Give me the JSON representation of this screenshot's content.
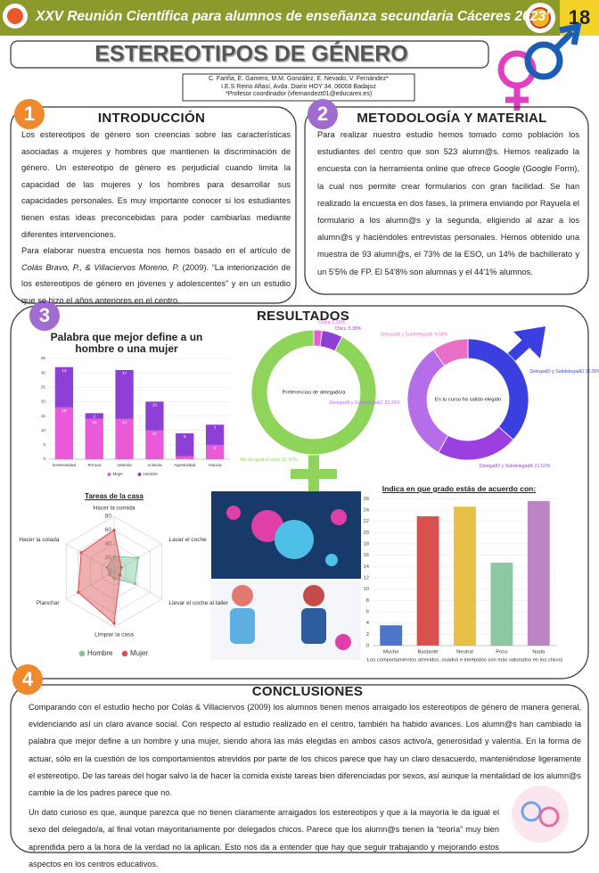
{
  "header": {
    "title": "XXV Reunión Científica para alumnos de enseñanza secundaria  Cáceres 2023”",
    "number": "18"
  },
  "title": "ESTEREOTIPOS DE GÉNERO",
  "authors": [
    "C. Fariña, E. Gamero, M.M. González, E. Nevado, V. Fernández*",
    "I.E.S Reino Aftasí, Avda. Diario HOY 34. 06008 Badajoz",
    "*Profesor coordinador (vfernandezt01@educarex.es)"
  ],
  "introduction": {
    "number": "1",
    "title": "INTRODUCCIÓN",
    "paragraphs": [
      "Los estereotipos de género son creencias sobre las características asociadas a mujeres y hombres que mantienen la discriminación de género. Un estereotipo de género es perjudicial cuando limita la capacidad de las mujeres y los hombres para desarrollar sus capacidades personales. Es muy importante conocer si los estudiantes tienen estas ideas preconcebidas para poder cambiarlas mediante diferentes intervenciones."
    ],
    "reference": {
      "lead": "Para elaborar nuestra encuesta nos hemos basado en el artículo de ",
      "citation": "Colás Bravo, P., & Villaciervos Moreno, P.",
      "rest": " (2009). “La interiorización de los estereotipos de género en jóvenes y adolescentes” y en un estudio que se hizo el años anteriores en el centro."
    }
  },
  "methodology": {
    "number": "2",
    "title": "METODOLOGÍA Y MATERIAL",
    "text": "Para realizar nuestro estudio hemos tomado como población los estudiantes del centro que son 523 alumn@s. Hemos realizado la encuesta con la herramienta online que ofrece Google (Google Form), la cual nos permite crear formularios con gran facilidad. Se han realizado la encuesta en dos fases, la primera enviando por Rayuela el formulario a los alumn@s y la segunda, eligiendo al azar a los alumn@s y haciéndoles entrevistas personales. Hemos obtenido una muestra de 93 alumn@s, el 73% de la ESO, un 14% de bachillerato y un 5'5% de FP. El 54'8% son alumnas y el 44'1% alumnos."
  },
  "results": {
    "number": "3",
    "title": "RESULTADOS"
  },
  "conclusions": {
    "number": "4",
    "title": "CONCLUSIONES",
    "paragraphs": [
      "Comparando con el estudio hecho por Colás & Villaciervos (2009) los alumnos tienen menos arraigado los estereotipos de género de manera general, evidenciando así un claro avance social. Con respecto al estudio realizado en el centro, también ha habido avances. Los alumn@s han cambiado la palabra que mejor define a un hombre y una mujer, siendo ahora las más elegidas en ambos casos activo/a, generosidad y valentía. En la forma de actuar, sólo en la cuestión de los comportamientos atrevidos por parte de los chicos parece que hay un claro desacuerdo, manteniéndose ligeramente el estereotipo. De las tareas del hogar salvo la de hacer la comida existe tareas bien diferenciadas por sexos, así aunque la mentalidad de los alumn@s cambie la de los padres parece que no.",
      "Un dato curioso es que, aunque parezca que no tienen claramente arraigados los estereotipos y que a la mayoría le da igual el sexo del delegado/a, al final votan mayoritariamente por delegados chicos. Parece que los alumn@s tienen la “teoría” muy bien aprendida pero a la hora de la verdad no la aplican. Esto nos da a entender que hay que seguir trabajando y mejorando estos aspectos en los centros educativos."
    ]
  },
  "chart_data": [
    {
      "type": "bar",
      "title": "Palabra que mejor define a un hombre o una mujer",
      "categories": [
        "Generosidad",
        "Ternura",
        "Valentía",
        "Activo/a",
        "Agresividad",
        "Astucia"
      ],
      "series": [
        {
          "name": "Mujer",
          "color": "#e85ad8",
          "values": [
            18,
            14,
            14,
            10,
            1,
            5
          ]
        },
        {
          "name": "Hombre",
          "color": "#8e3fd6",
          "values": [
            14,
            2,
            17,
            10,
            8,
            7
          ]
        }
      ],
      "ylim": [
        0,
        35
      ],
      "yticks": [
        0,
        5,
        10,
        15,
        20,
        25,
        30,
        35
      ],
      "grid": true,
      "legend": "bottom"
    },
    {
      "type": "pie",
      "center_label": "Preferencias de delegado/a",
      "categories": [
        "Chica",
        "Chico",
        "Me da igual el sexo"
      ],
      "values": [
        2.15,
        5.38,
        92.47
      ],
      "value_labels": [
        "2.15%",
        "5.38%",
        "92.47%"
      ],
      "colors": [
        "#e85ad8",
        "#8e3fd6",
        "#8fd45a"
      ]
    },
    {
      "type": "pie",
      "center_label": "En tu curso ha salido elegido",
      "categories": [
        "DelegadO y SubdelegadO",
        "DelegadO y SubdelegadA",
        "DelegadA y SubdelegadO",
        "DelegadA y SubdelegadA"
      ],
      "values": [
        36.56,
        21.51,
        32.26,
        9.68
      ],
      "value_labels": [
        "36.56%",
        "21.51%",
        "32.26%",
        "9.68%"
      ],
      "colors": [
        "#3b3fe0",
        "#9a3fe0",
        "#b56ee8",
        "#e86fc8"
      ]
    },
    {
      "type": "radar",
      "title": "Tareas de la casa",
      "categories": [
        "Hacer la comida",
        "Lavar el coche",
        "Llevar el coche al taller",
        "Limpiar la casa",
        "Planchar",
        "Hacer la colada"
      ],
      "series": [
        {
          "name": "Hombre",
          "color": "#7dc49b",
          "values": [
            22,
            40,
            35,
            10,
            8,
            12
          ]
        },
        {
          "name": "Mujer",
          "color": "#d9504f",
          "values": [
            60,
            12,
            10,
            75,
            60,
            55
          ]
        }
      ],
      "ylim": [
        0,
        80
      ],
      "yticks": [
        0,
        20,
        40,
        60,
        80
      ],
      "legend": "bottom"
    },
    {
      "type": "bar",
      "title": "Indica en que grado estás de acuerdo con:",
      "xlabel": "Los comportamientos atrevidos, osados e intrépidos son más valorados en los chicos",
      "categories": [
        "Mucho",
        "Bastante",
        "Neutral",
        "Poco",
        "Nada"
      ],
      "values": [
        3.6,
        22.9,
        24.6,
        14.7,
        25.6
      ],
      "colors": [
        "#4d74c9",
        "#d9504f",
        "#e9c046",
        "#8cc9a2",
        "#bb84c4"
      ],
      "ylim": [
        0,
        27
      ],
      "yticks": [
        0,
        2,
        4,
        6,
        8,
        10,
        12,
        14,
        16,
        18,
        20,
        22,
        24,
        26
      ],
      "grid": true
    }
  ]
}
